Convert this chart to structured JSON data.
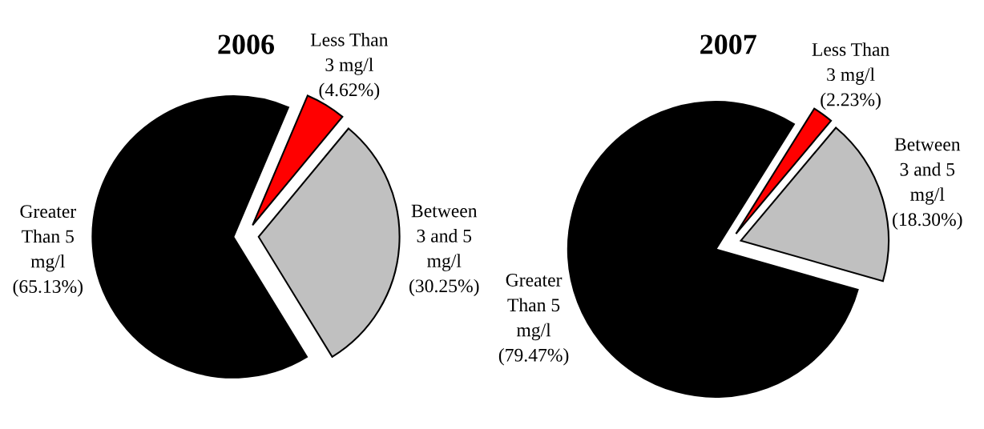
{
  "chart_data": [
    {
      "type": "pie",
      "title": "2006",
      "categories": [
        "Less Than\n3 mg/l",
        "Between\n3 and 5\nmg/l",
        "Greater\nThan 5\nmg/l"
      ],
      "values": [
        4.62,
        30.25,
        65.13
      ],
      "value_labels": [
        "(4.62%)",
        "(30.25%)",
        "(65.13%)"
      ],
      "colors": [
        "#ff0000",
        "#c0c0c0",
        "#000000"
      ]
    },
    {
      "type": "pie",
      "title": "2007",
      "categories": [
        "Less Than\n3 mg/l",
        "Between\n3 and 5\nmg/l",
        "Greater\nThan 5\nmg/l"
      ],
      "values": [
        2.23,
        18.3,
        79.47
      ],
      "value_labels": [
        "(2.23%)",
        "(18.30%)",
        "(79.47%)"
      ],
      "colors": [
        "#ff0000",
        "#c0c0c0",
        "#000000"
      ]
    }
  ]
}
